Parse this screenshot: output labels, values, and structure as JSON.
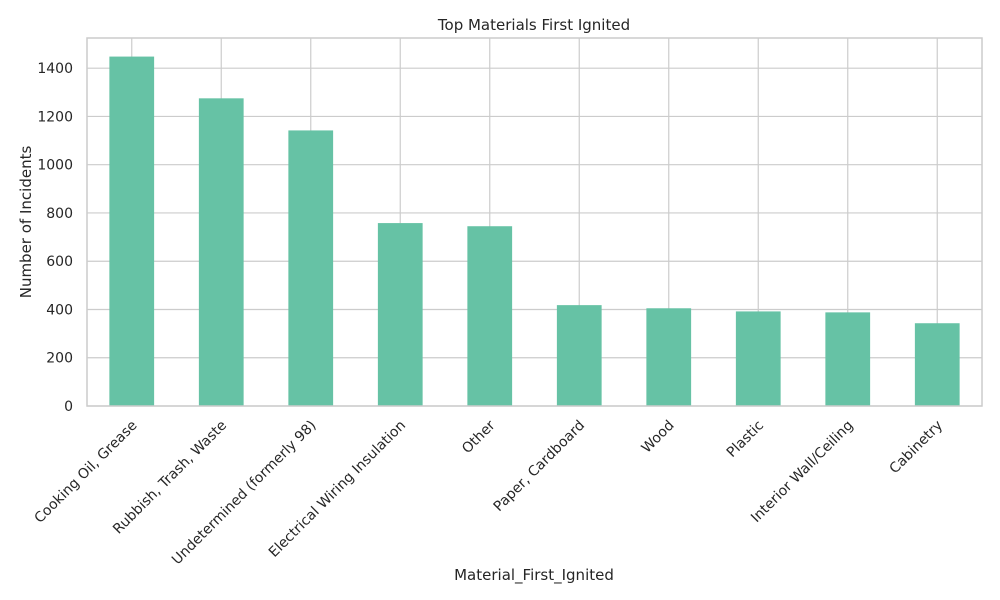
{
  "chart_data": {
    "type": "bar",
    "title": "Top Materials First Ignited",
    "xlabel": "Material_First_Ignited",
    "ylabel": "Number of Incidents",
    "categories": [
      "Cooking Oil, Grease",
      "Rubbish, Trash, Waste",
      "Undetermined (formerly 98)",
      "Electrical Wiring Insulation",
      "Other",
      "Paper, Cardboard",
      "Wood",
      "Plastic",
      "Interior Wall/Ceiling",
      "Cabinetry"
    ],
    "values": [
      1448,
      1275,
      1142,
      758,
      745,
      418,
      405,
      392,
      388,
      343
    ],
    "ylim": [
      0,
      1525
    ],
    "yticks": [
      0,
      200,
      400,
      600,
      800,
      1000,
      1200,
      1400
    ],
    "grid": true,
    "bar_color": "#66c2a5"
  }
}
